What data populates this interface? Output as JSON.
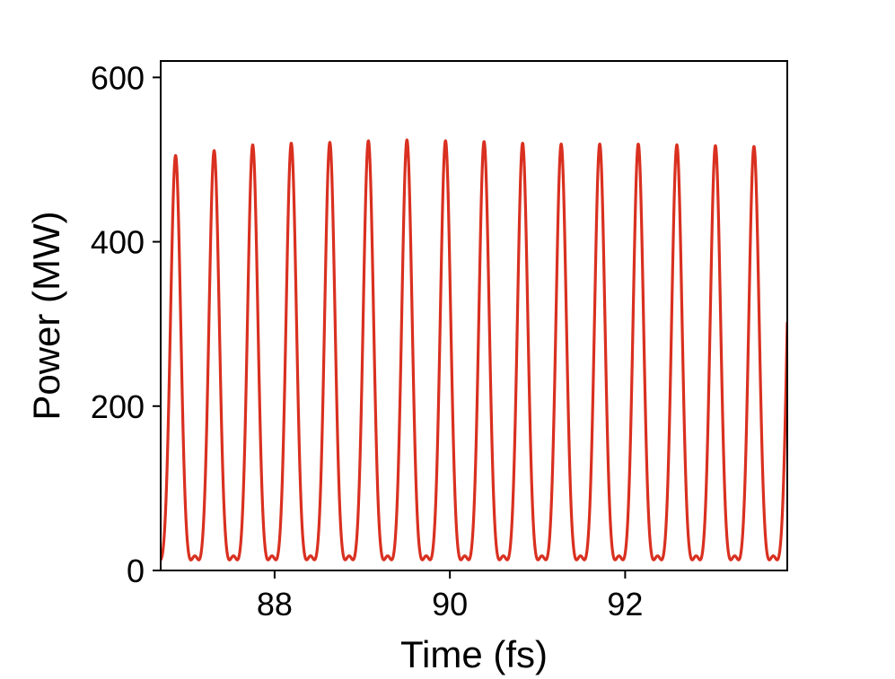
{
  "chart_data": {
    "type": "line",
    "xlabel": "Time (fs)",
    "ylabel": "Power (MW)",
    "xlim": [
      86.7,
      93.85
    ],
    "ylim": [
      0,
      620
    ],
    "xticks": [
      {
        "value": 88,
        "label": "88"
      },
      {
        "value": 90,
        "label": "90"
      },
      {
        "value": 92,
        "label": "92"
      }
    ],
    "yticks": [
      {
        "value": 0,
        "label": "0"
      },
      {
        "value": 200,
        "label": "200"
      },
      {
        "value": 400,
        "label": "400"
      },
      {
        "value": 600,
        "label": "600"
      }
    ],
    "grid": false,
    "legend": "none",
    "series": [
      {
        "color": "#d93020",
        "pulse_peaks": [
          {
            "t": 86.87,
            "p": 505
          },
          {
            "t": 87.31,
            "p": 511
          },
          {
            "t": 87.75,
            "p": 518
          },
          {
            "t": 88.19,
            "p": 520
          },
          {
            "t": 88.63,
            "p": 521
          },
          {
            "t": 89.07,
            "p": 523
          },
          {
            "t": 89.51,
            "p": 524
          },
          {
            "t": 89.95,
            "p": 523
          },
          {
            "t": 90.39,
            "p": 522
          },
          {
            "t": 90.83,
            "p": 520
          },
          {
            "t": 91.27,
            "p": 519
          },
          {
            "t": 91.71,
            "p": 519
          },
          {
            "t": 92.15,
            "p": 519
          },
          {
            "t": 92.59,
            "p": 518
          },
          {
            "t": 93.03,
            "p": 517
          },
          {
            "t": 93.47,
            "p": 516
          }
        ],
        "secondary_peak_power": 17
      }
    ]
  }
}
